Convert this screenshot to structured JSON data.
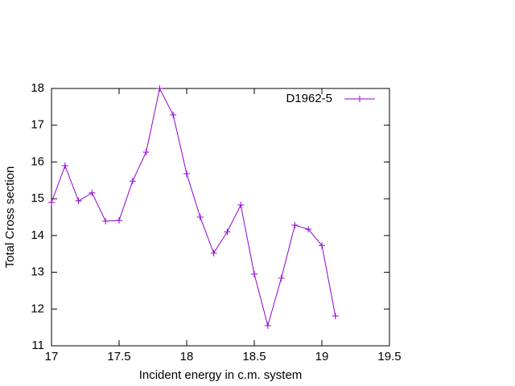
{
  "chart_data": {
    "type": "line",
    "xlabel": "Incident energy in c.m. system",
    "ylabel": "Total Cross section",
    "x": [
      17.0,
      17.1,
      17.2,
      17.3,
      17.4,
      17.5,
      17.6,
      17.7,
      17.8,
      17.9,
      18.0,
      18.1,
      18.2,
      18.3,
      18.4,
      18.5,
      18.6,
      18.7,
      18.8,
      18.9,
      19.0,
      19.1
    ],
    "series": [
      {
        "name": "D1962-5",
        "color": "#9400d3",
        "values": [
          14.9,
          15.9,
          14.94,
          15.16,
          14.39,
          14.41,
          15.48,
          16.27,
          18.0,
          17.28,
          15.68,
          14.5,
          13.52,
          14.1,
          14.83,
          12.95,
          11.55,
          12.84,
          14.28,
          14.17,
          13.73,
          11.81
        ]
      }
    ],
    "xlim": [
      17,
      19.5
    ],
    "xticks": [
      17,
      17.5,
      18,
      18.5,
      19,
      19.5
    ],
    "ylim": [
      11,
      18
    ],
    "yticks": [
      11,
      12,
      13,
      14,
      15,
      16,
      17,
      18
    ],
    "legend": "top-right",
    "grid": false
  }
}
